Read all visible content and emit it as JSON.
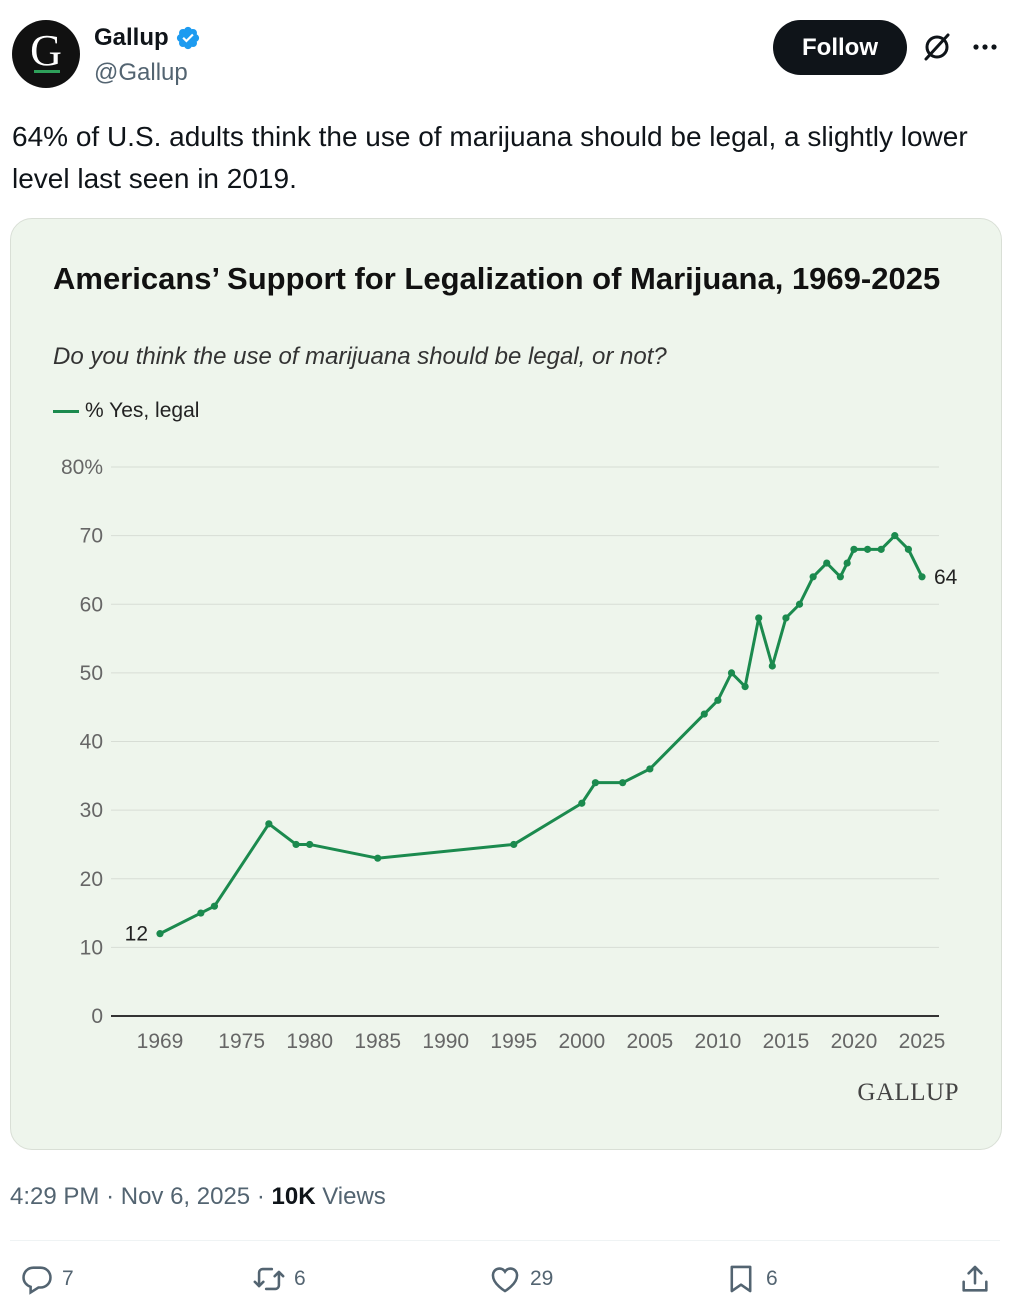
{
  "author": {
    "name": "Gallup",
    "handle": "@Gallup",
    "avatar_letter": "G"
  },
  "follow_label": "Follow",
  "tweet_text": "64% of U.S. adults think the use of marijuana should be legal, a slightly lower level last seen in 2019.",
  "card": {
    "title": "Americans’ Support for Legalization of Marijuana, 1969-2025",
    "subtitle": "Do you think the use of marijuana should be legal, or not?",
    "legend_label": "% Yes, legal",
    "brand": "GALLUP"
  },
  "meta": {
    "time": "4:29 PM",
    "date": "Nov 6, 2025",
    "views_count": "10K",
    "views_label": "Views"
  },
  "actions": {
    "replies": "7",
    "reposts": "6",
    "likes": "29",
    "bookmarks": "6"
  },
  "colors": {
    "series": "#1b8a4e",
    "card_bg": "#eef5ec",
    "verified": "#1d9bf0"
  },
  "chart_data": {
    "type": "line",
    "title": "Americans’ Support for Legalization of Marijuana, 1969-2025",
    "subtitle": "Do you think the use of marijuana should be legal, or not?",
    "xlabel": "",
    "ylabel": "",
    "ylim": [
      0,
      80
    ],
    "xlim": [
      1969,
      2025
    ],
    "y_ticks": [
      0,
      10,
      20,
      30,
      40,
      50,
      60,
      70,
      80
    ],
    "y_tick_labels": [
      "0",
      "10",
      "20",
      "30",
      "40",
      "50",
      "60",
      "70",
      "80%"
    ],
    "x_ticks": [
      1969,
      1975,
      1980,
      1985,
      1990,
      1995,
      2000,
      2005,
      2010,
      2015,
      2020,
      2025
    ],
    "grid": true,
    "legend_position": "top-left",
    "series": [
      {
        "name": "% Yes, legal",
        "x": [
          1969,
          1972,
          1973,
          1977,
          1979,
          1980,
          1985,
          1995,
          2000,
          2001,
          2003,
          2005,
          2009,
          2010,
          2011,
          2012,
          2013,
          2014,
          2015,
          2016,
          2017,
          2018,
          2019,
          2019.5,
          2020,
          2021,
          2022,
          2023,
          2024,
          2025
        ],
        "values": [
          12,
          15,
          16,
          28,
          25,
          25,
          23,
          25,
          31,
          34,
          34,
          36,
          44,
          46,
          50,
          48,
          58,
          51,
          58,
          60,
          64,
          66,
          64,
          66,
          68,
          68,
          68,
          70,
          68,
          64
        ]
      }
    ],
    "annotations": [
      {
        "x": 1969,
        "y": 12,
        "text": "12"
      },
      {
        "x": 2025,
        "y": 64,
        "text": "64"
      }
    ]
  }
}
